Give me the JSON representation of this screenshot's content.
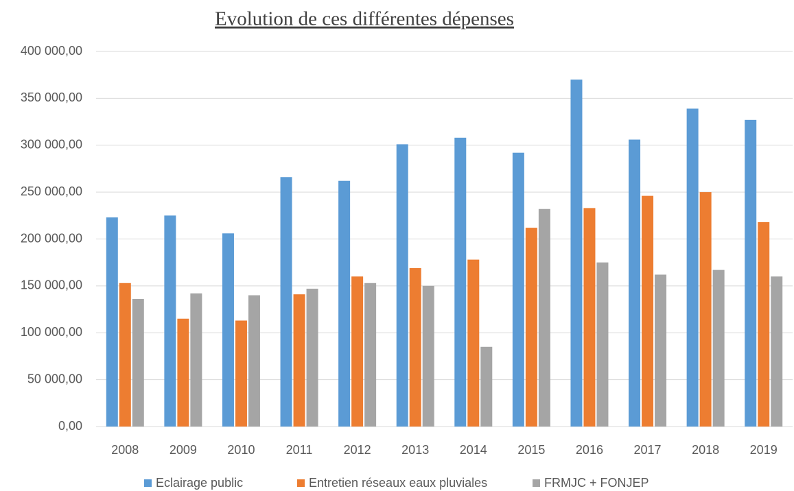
{
  "chart_data": {
    "type": "bar",
    "title": "Evolution de ces différentes dépenses",
    "categories": [
      "2008",
      "2009",
      "2010",
      "2011",
      "2012",
      "2013",
      "2014",
      "2015",
      "2016",
      "2017",
      "2018",
      "2019"
    ],
    "series": [
      {
        "name": "Eclairage public",
        "color": "#5b9bd5",
        "values": [
          223000,
          225000,
          206000,
          266000,
          262000,
          301000,
          308000,
          292000,
          370000,
          306000,
          339000,
          327000
        ]
      },
      {
        "name": "Entretien réseaux eaux pluviales",
        "color": "#ed7d31",
        "values": [
          153000,
          115000,
          113000,
          141000,
          160000,
          169000,
          178000,
          212000,
          233000,
          246000,
          250000,
          218000
        ]
      },
      {
        "name": "FRMJC + FONJEP",
        "color": "#a5a5a5",
        "values": [
          136000,
          142000,
          140000,
          147000,
          153000,
          150000,
          85000,
          232000,
          175000,
          162000,
          167000,
          160000
        ]
      }
    ],
    "ylim": [
      0,
      400000
    ],
    "yticks": [
      {
        "value": 0,
        "label": "0,00"
      },
      {
        "value": 50000,
        "label": "50 000,00"
      },
      {
        "value": 100000,
        "label": "100 000,00"
      },
      {
        "value": 150000,
        "label": "150 000,00"
      },
      {
        "value": 200000,
        "label": "200 000,00"
      },
      {
        "value": 250000,
        "label": "250 000,00"
      },
      {
        "value": 300000,
        "label": "300 000,00"
      },
      {
        "value": 350000,
        "label": "350 000,00"
      },
      {
        "value": 400000,
        "label": "400 000,00"
      }
    ],
    "grid": true,
    "legend": "bottom"
  }
}
